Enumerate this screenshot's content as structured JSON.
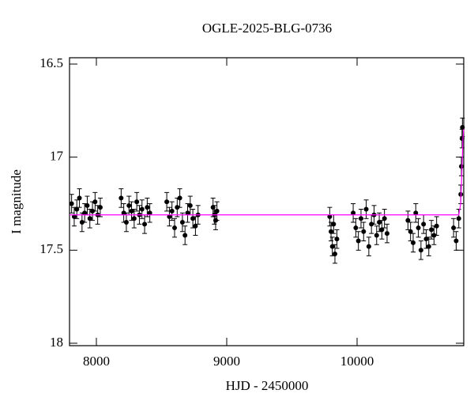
{
  "chart_data": {
    "type": "scatter",
    "title": "OGLE-2025-BLG-0736",
    "x_label": "HJD - 2450000",
    "y_label": "I magnitude",
    "xlim": [
      7794,
      10818
    ],
    "xticks": [
      8000,
      9000,
      10000
    ],
    "ylim": [
      16.466,
      18.013
    ],
    "y_inverted": true,
    "yticks": [
      16.5,
      17,
      17.5,
      18
    ],
    "point_color": "#000000",
    "y_error": 0.05,
    "x": [
      7810,
      7830,
      7850,
      7870,
      7890,
      7910,
      7930,
      7950,
      7970,
      7990,
      8010,
      8030,
      8190,
      8210,
      8230,
      8250,
      8270,
      8290,
      8310,
      8330,
      8350,
      8370,
      8390,
      8410,
      8540,
      8560,
      8580,
      8600,
      8620,
      8640,
      8660,
      8680,
      8700,
      8720,
      8740,
      8760,
      8780,
      8895,
      8905,
      8915,
      8925,
      9790,
      9800,
      9810,
      9820,
      9830,
      9845,
      9970,
      9990,
      10010,
      10030,
      10050,
      10070,
      10090,
      10110,
      10130,
      10150,
      10170,
      10190,
      10210,
      10230,
      10390,
      10410,
      10430,
      10450,
      10470,
      10490,
      10510,
      10530,
      10550,
      10570,
      10590,
      10610,
      10740,
      10760,
      10780,
      10795,
      10800,
      10805,
      10808
    ],
    "y": [
      17.25,
      17.32,
      17.28,
      17.22,
      17.35,
      17.3,
      17.26,
      17.33,
      17.29,
      17.24,
      17.31,
      17.27,
      17.22,
      17.3,
      17.35,
      17.26,
      17.29,
      17.33,
      17.24,
      17.31,
      17.28,
      17.36,
      17.27,
      17.3,
      17.24,
      17.32,
      17.29,
      17.38,
      17.27,
      17.22,
      17.35,
      17.42,
      17.3,
      17.26,
      17.33,
      17.37,
      17.31,
      17.27,
      17.31,
      17.34,
      17.29,
      17.32,
      17.4,
      17.48,
      17.36,
      17.52,
      17.44,
      17.3,
      17.38,
      17.45,
      17.33,
      17.4,
      17.28,
      17.48,
      17.36,
      17.31,
      17.42,
      17.35,
      17.39,
      17.33,
      17.41,
      17.34,
      17.4,
      17.46,
      17.3,
      17.38,
      17.5,
      17.36,
      17.44,
      17.48,
      17.39,
      17.42,
      17.37,
      17.38,
      17.45,
      17.33,
      17.2,
      17.05,
      16.9,
      16.84
    ],
    "model": {
      "color": "#ff00ff",
      "x": [
        7794,
        10780,
        10795,
        10805,
        10812,
        10818
      ],
      "y": [
        17.31,
        17.31,
        17.25,
        17.05,
        16.9,
        16.85
      ]
    }
  }
}
